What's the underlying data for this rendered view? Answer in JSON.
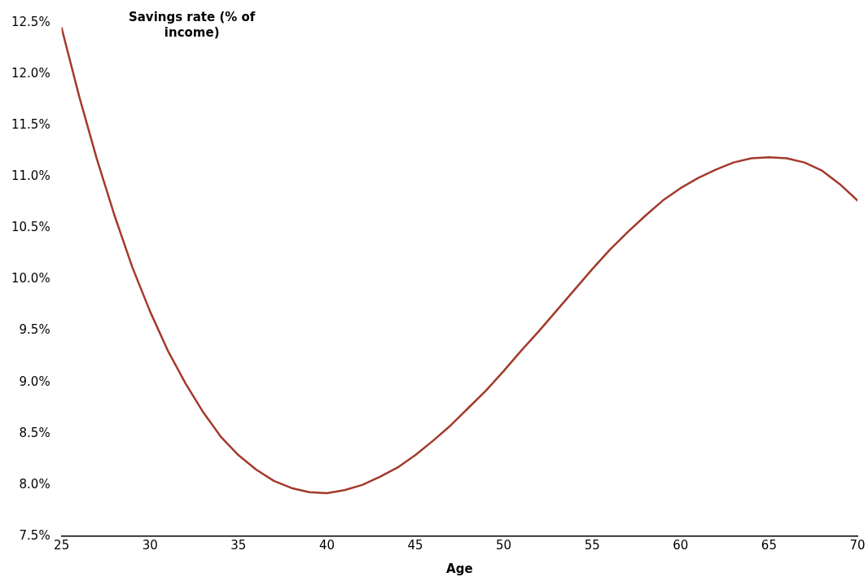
{
  "chart_data": {
    "type": "line",
    "ylabel": "Savings rate (% of income)",
    "xlabel": "Age",
    "x": [
      25,
      26,
      27,
      28,
      29,
      30,
      31,
      32,
      33,
      34,
      35,
      36,
      37,
      38,
      39,
      40,
      41,
      42,
      43,
      44,
      45,
      46,
      47,
      48,
      49,
      50,
      51,
      52,
      53,
      54,
      55,
      56,
      57,
      58,
      59,
      60,
      61,
      62,
      63,
      64,
      65,
      66,
      67,
      68,
      69,
      70
    ],
    "series": [
      {
        "color": "#a33a2c",
        "values": [
          12.45,
          11.78,
          11.17,
          10.62,
          10.12,
          9.69,
          9.31,
          8.99,
          8.71,
          8.47,
          8.29,
          8.15,
          8.04,
          7.97,
          7.93,
          7.92,
          7.95,
          8.0,
          8.08,
          8.17,
          8.29,
          8.43,
          8.58,
          8.75,
          8.92,
          9.11,
          9.31,
          9.5,
          9.7,
          9.9,
          10.1,
          10.29,
          10.46,
          10.62,
          10.77,
          10.89,
          10.99,
          11.07,
          11.14,
          11.18,
          11.19,
          11.18,
          11.14,
          11.06,
          10.93,
          10.77
        ]
      }
    ],
    "xlim": [
      25,
      70
    ],
    "xticks": [
      25,
      30,
      35,
      40,
      45,
      50,
      55,
      60,
      65,
      70
    ],
    "ylim": [
      7.5,
      12.5
    ],
    "yticks": [
      {
        "value": 7.5,
        "label": "7.5%"
      },
      {
        "value": 8,
        "label": "8.0%"
      },
      {
        "value": 8.5,
        "label": "8.5%"
      },
      {
        "value": 9,
        "label": "9.0%"
      },
      {
        "value": 9.5,
        "label": "9.5%"
      },
      {
        "value": 10,
        "label": "10.0%"
      },
      {
        "value": 10.5,
        "label": "10.5%"
      },
      {
        "value": 11,
        "label": "11.0%"
      },
      {
        "value": 11.5,
        "label": "11.5%"
      },
      {
        "value": 12,
        "label": "12.0%"
      },
      {
        "value": 12.5,
        "label": "12.5%"
      }
    ],
    "grid": false,
    "legend": false,
    "marker": "none",
    "line_style": "solid"
  }
}
